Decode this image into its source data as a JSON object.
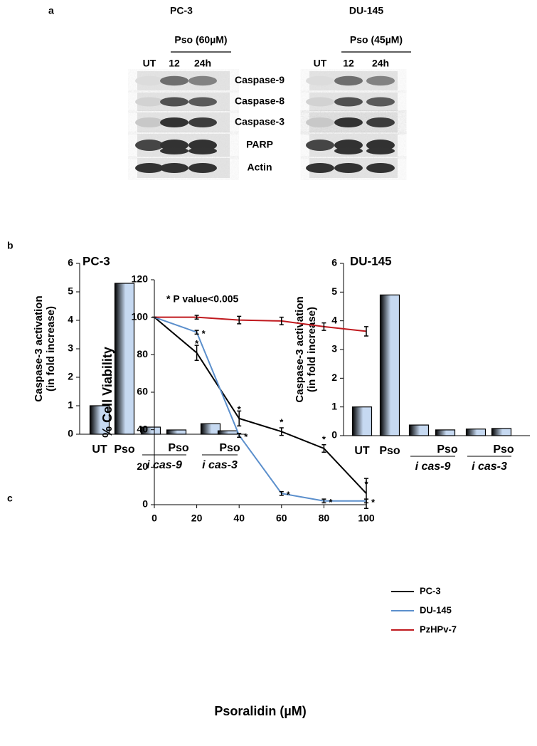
{
  "panel_a": {
    "label": "a",
    "cell_lines": [
      {
        "name": "PC-3",
        "treatment": "Pso (60µM)",
        "lanes": [
          "UT",
          "12",
          "24h"
        ]
      },
      {
        "name": "DU-145",
        "treatment": "Pso (45µM)",
        "lanes": [
          "UT",
          "12",
          "24h"
        ]
      }
    ],
    "proteins": [
      "Caspase-9",
      "Caspase-8",
      "Caspase-3",
      "PARP",
      "Actin"
    ]
  },
  "panel_b_label": "b",
  "panel_c_label": "c",
  "chart_data": [
    {
      "type": "bar",
      "title": "PC-3",
      "y_label": [
        "Caspase-3 activation",
        "(in fold increase)"
      ],
      "categories": [
        "UT",
        "Pso",
        null,
        null,
        null,
        null
      ],
      "groups": [
        {
          "top": "Pso",
          "bottom": "i cas-9"
        },
        {
          "top": "Pso",
          "bottom": "i cas-3"
        }
      ],
      "values": [
        1.0,
        5.3,
        0.25,
        0.15,
        0.37,
        0.12
      ],
      "color": "#c6d9f1",
      "ylim": [
        0,
        6
      ],
      "yticks": [
        0,
        1,
        2,
        3,
        4,
        5,
        6
      ]
    },
    {
      "type": "bar",
      "title": "DU-145",
      "y_label": [
        "Caspase-3 activation",
        "(in fold increase)"
      ],
      "categories": [
        "UT",
        "Pso",
        null,
        null,
        null,
        null
      ],
      "groups": [
        {
          "top": "Pso",
          "bottom": "i cas-9"
        },
        {
          "top": "Pso",
          "bottom": "i cas-3"
        }
      ],
      "values": [
        1.0,
        4.9,
        0.37,
        0.2,
        0.23,
        0.25
      ],
      "color": "#c6d9f1",
      "ylim": [
        0,
        6
      ],
      "yticks": [
        0,
        1,
        2,
        3,
        4,
        5,
        6
      ]
    },
    {
      "type": "line",
      "annotation": "* P value<0.005",
      "x_label": "Psoralidin (µM)",
      "y_label": "% Cell Viability",
      "x": [
        0,
        20,
        40,
        60,
        80,
        100
      ],
      "xlim": [
        0,
        100
      ],
      "xticks": [
        0,
        20,
        40,
        60,
        80,
        100
      ],
      "ylim": [
        0,
        120
      ],
      "yticks": [
        0,
        20,
        40,
        60,
        80,
        100,
        120
      ],
      "series": [
        {
          "name": "PC-3",
          "color": "#000000",
          "values": [
            100,
            81,
            46,
            39,
            30,
            6
          ],
          "errors": [
            0,
            4,
            4,
            2,
            2,
            8
          ],
          "significance": [
            null,
            "*",
            "*",
            "*",
            "*",
            "*"
          ]
        },
        {
          "name": "DU-145",
          "color": "#5b8fcc",
          "values": [
            100,
            92,
            37,
            6,
            2,
            2
          ],
          "errors": [
            0,
            1,
            1,
            1,
            1,
            1
          ],
          "significance": [
            null,
            "*",
            "*",
            "*",
            "*",
            "*"
          ]
        },
        {
          "name": "PzHPv-7",
          "color": "#c0191e",
          "values": [
            100,
            100,
            98.5,
            98,
            95,
            92.5
          ],
          "errors": [
            0,
            1,
            2,
            2,
            2,
            2.5
          ],
          "significance": [
            null,
            null,
            null,
            null,
            null,
            null
          ]
        }
      ]
    }
  ]
}
